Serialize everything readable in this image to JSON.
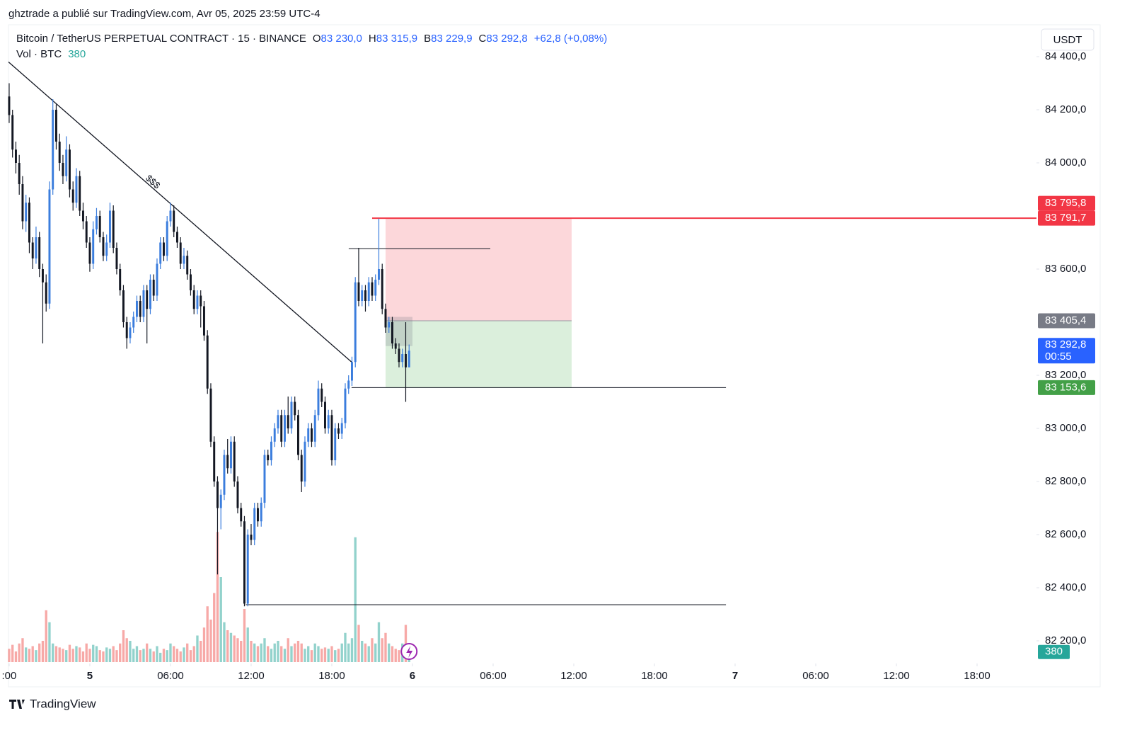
{
  "chart_data": {
    "type": "candlestick",
    "header": "ghztrade a publié sur TradingView.com, Avr 05, 2025 23:59 UTC-4",
    "symbol": "Bitcoin / TetherUS PERPETUAL CONTRACT · 15 · BINANCE",
    "legend_fields": [
      {
        "key": "O",
        "value": "83 230,0"
      },
      {
        "key": "H",
        "value": "83 315,9"
      },
      {
        "key": "B",
        "value": "83 229,9"
      },
      {
        "key": "C",
        "value": "83 292,8"
      }
    ],
    "change": "+62,8 (+0,08%)",
    "volume_label": "Vol · BTC",
    "currency": "USDT",
    "footer": "TradingView",
    "up_color": "#3b7ddd",
    "down_color": "#131722",
    "volume_up_color": "rgba(38,166,154,0.5)",
    "volume_down_color": "rgba(239,83,80,0.5)",
    "xlim": [
      -6.05,
      70.42
    ],
    "ylim": [
      82120,
      84520
    ],
    "volume_ylim": [
      0,
      24000
    ],
    "xticks": [
      {
        "value": -6,
        "label": ":00"
      },
      {
        "value": 0,
        "label": "5"
      },
      {
        "value": 6,
        "label": "06:00"
      },
      {
        "value": 12,
        "label": "12:00"
      },
      {
        "value": 18,
        "label": "18:00"
      },
      {
        "value": 24,
        "label": "6"
      },
      {
        "value": 30,
        "label": "06:00"
      },
      {
        "value": 36,
        "label": "12:00"
      },
      {
        "value": 42,
        "label": "18:00"
      },
      {
        "value": 48,
        "label": "7"
      },
      {
        "value": 54,
        "label": "06:00"
      },
      {
        "value": 60,
        "label": "12:00"
      },
      {
        "value": 66,
        "label": "18:00"
      }
    ],
    "yticks": [
      {
        "value": 84400,
        "label": "84 400,0"
      },
      {
        "value": 84200,
        "label": "84 200,0"
      },
      {
        "value": 84000,
        "label": "84 000,0"
      },
      {
        "value": 83600,
        "label": "83 600,0"
      },
      {
        "value": 83200,
        "label": "83 200,0"
      },
      {
        "value": 83000,
        "label": "83 000,0"
      },
      {
        "value": 82800,
        "label": "82 800,0"
      },
      {
        "value": 82600,
        "label": "82 600,0"
      },
      {
        "value": 82400,
        "label": "82 400,0"
      },
      {
        "value": 82200,
        "label": "82 200,0"
      }
    ],
    "price_labels": [
      {
        "value": 83795.8,
        "label": "83 795,8",
        "color": "#f23645"
      },
      {
        "value": 83791.7,
        "label": "83 791,7",
        "color": "#f23645"
      },
      {
        "value": 83405.4,
        "label": "83 405,4",
        "color": "#787b86"
      },
      {
        "value": 83292.8,
        "label": "83 292,8",
        "color": "#2962ff",
        "countdown": "00:55"
      },
      {
        "value": 83153.6,
        "label": "83 153,6",
        "color": "#43a047"
      }
    ],
    "trendline": {
      "x": [
        -6.05,
        19.47
      ],
      "y": [
        84380,
        83250
      ],
      "label": "$$$"
    },
    "hlines": [
      {
        "y": 83791.7,
        "x": [
          21.0,
          70.42
        ],
        "color": "#f23645",
        "width": 2
      },
      {
        "y": 83677,
        "x": [
          19.26,
          29.79
        ],
        "color": "#131722",
        "width": 1
      },
      {
        "y": 83153.6,
        "x": [
          19.47,
          47.32
        ],
        "color": "#131722",
        "width": 1
      },
      {
        "y": 82336,
        "x": [
          11.58,
          47.32
        ],
        "color": "#131722",
        "width": 1
      }
    ],
    "position": {
      "x": [
        22.0,
        35.84
      ],
      "entry": 83405.4,
      "stop": 83791.7,
      "target": 83153.6
    },
    "marker_box": {
      "x": [
        22.0,
        24.0
      ],
      "y": [
        83310,
        83420
      ]
    },
    "x": [
      -6,
      -5.75,
      -5.5,
      -5.25,
      -5,
      -4.75,
      -4.5,
      -4.25,
      -4,
      -3.75,
      -3.5,
      -3.25,
      -3,
      -2.75,
      -2.5,
      -2.25,
      -2,
      -1.75,
      -1.5,
      -1.25,
      -1,
      -0.75,
      -0.5,
      -0.25,
      0,
      0.25,
      0.5,
      0.75,
      1,
      1.25,
      1.5,
      1.75,
      2,
      2.25,
      2.5,
      2.75,
      3,
      3.25,
      3.5,
      3.75,
      4,
      4.25,
      4.5,
      4.75,
      5,
      5.25,
      5.5,
      5.75,
      6,
      6.25,
      6.5,
      6.75,
      7,
      7.25,
      7.5,
      7.75,
      8,
      8.25,
      8.5,
      8.75,
      9,
      9.25,
      9.5,
      9.75,
      10,
      10.25,
      10.5,
      10.75,
      11,
      11.25,
      11.5,
      11.75,
      12,
      12.25,
      12.5,
      12.75,
      13,
      13.25,
      13.5,
      13.75,
      14,
      14.25,
      14.5,
      14.75,
      15,
      15.25,
      15.5,
      15.75,
      16,
      16.25,
      16.5,
      16.75,
      17,
      17.25,
      17.5,
      17.75,
      18,
      18.25,
      18.5,
      18.75,
      19,
      19.25,
      19.5,
      19.75,
      20,
      20.25,
      20.5,
      20.75,
      21,
      21.25,
      21.5,
      21.75,
      22,
      22.25,
      22.5,
      22.75,
      23,
      23.25,
      23.5,
      23.75
    ],
    "ohlc": [
      [
        84250,
        84300,
        84150,
        84180
      ],
      [
        84180,
        84200,
        84020,
        84050
      ],
      [
        84050,
        84080,
        83960,
        84000
      ],
      [
        84000,
        84030,
        83880,
        83920
      ],
      [
        83920,
        83950,
        83750,
        83780
      ],
      [
        83780,
        83880,
        83740,
        83850
      ],
      [
        83850,
        83870,
        83660,
        83700
      ],
      [
        83700,
        83720,
        83600,
        83640
      ],
      [
        83640,
        83760,
        83620,
        83720
      ],
      [
        83720,
        83740,
        83570,
        83600
      ],
      [
        83600,
        83620,
        83320,
        83550
      ],
      [
        83550,
        83580,
        83440,
        83470
      ],
      [
        83470,
        83930,
        83450,
        83900
      ],
      [
        83900,
        84240,
        83880,
        84200
      ],
      [
        84200,
        84220,
        84050,
        84080
      ],
      [
        84080,
        84110,
        83970,
        84000
      ],
      [
        84000,
        84030,
        83920,
        83950
      ],
      [
        83950,
        84100,
        83930,
        84050
      ],
      [
        84050,
        84070,
        83870,
        83900
      ],
      [
        83900,
        83930,
        83820,
        83850
      ],
      [
        83850,
        83980,
        83830,
        83950
      ],
      [
        83950,
        83970,
        83800,
        83820
      ],
      [
        83820,
        83850,
        83750,
        83780
      ],
      [
        83780,
        83800,
        83680,
        83700
      ],
      [
        83700,
        83720,
        83590,
        83620
      ],
      [
        83620,
        83780,
        83600,
        83750
      ],
      [
        83750,
        83830,
        83730,
        83800
      ],
      [
        83800,
        83820,
        83700,
        83720
      ],
      [
        83720,
        83740,
        83630,
        83650
      ],
      [
        83650,
        83730,
        83630,
        83700
      ],
      [
        83700,
        83850,
        83680,
        83820
      ],
      [
        83820,
        83840,
        83660,
        83680
      ],
      [
        83680,
        83700,
        83580,
        83600
      ],
      [
        83600,
        83620,
        83500,
        83520
      ],
      [
        83520,
        83540,
        83380,
        83400
      ],
      [
        83400,
        83420,
        83300,
        83340
      ],
      [
        83340,
        83400,
        83320,
        83380
      ],
      [
        83380,
        83440,
        83360,
        83420
      ],
      [
        83420,
        83500,
        83400,
        83480
      ],
      [
        83480,
        83500,
        83400,
        83420
      ],
      [
        83420,
        83540,
        83400,
        83520
      ],
      [
        83520,
        83540,
        83320,
        83450
      ],
      [
        83450,
        83580,
        83430,
        83560
      ],
      [
        83560,
        83580,
        83480,
        83500
      ],
      [
        83500,
        83640,
        83480,
        83620
      ],
      [
        83620,
        83720,
        83600,
        83700
      ],
      [
        83700,
        83720,
        83630,
        83650
      ],
      [
        83650,
        83800,
        83630,
        83780
      ],
      [
        83780,
        83850,
        83760,
        83820
      ],
      [
        83820,
        83840,
        83720,
        83740
      ],
      [
        83740,
        83760,
        83680,
        83700
      ],
      [
        83700,
        83720,
        83600,
        83620
      ],
      [
        83620,
        83680,
        83600,
        83650
      ],
      [
        83650,
        83670,
        83560,
        83580
      ],
      [
        83580,
        83600,
        83500,
        83520
      ],
      [
        83520,
        83540,
        83430,
        83450
      ],
      [
        83450,
        83520,
        83430,
        83500
      ],
      [
        83500,
        83520,
        83380,
        83460
      ],
      [
        83460,
        83480,
        83330,
        83350
      ],
      [
        83350,
        83370,
        83130,
        83150
      ],
      [
        83150,
        83170,
        82930,
        82950
      ],
      [
        82950,
        82970,
        82780,
        82800
      ],
      [
        82800,
        82820,
        82450,
        82700
      ],
      [
        82700,
        82770,
        82620,
        82750
      ],
      [
        82750,
        82920,
        82730,
        82900
      ],
      [
        82900,
        82960,
        82830,
        82850
      ],
      [
        82850,
        82970,
        82830,
        82950
      ],
      [
        82950,
        82970,
        82780,
        82800
      ],
      [
        82800,
        82820,
        82680,
        82700
      ],
      [
        82700,
        82720,
        82630,
        82650
      ],
      [
        82650,
        82670,
        82330,
        82340
      ],
      [
        82340,
        82620,
        82330,
        82600
      ],
      [
        82600,
        82640,
        82560,
        82580
      ],
      [
        82580,
        82720,
        82560,
        82700
      ],
      [
        82700,
        82720,
        82630,
        82650
      ],
      [
        82650,
        82740,
        82630,
        82720
      ],
      [
        82720,
        82920,
        82700,
        82900
      ],
      [
        82900,
        82920,
        82860,
        82880
      ],
      [
        82880,
        82970,
        82860,
        82950
      ],
      [
        82950,
        83020,
        82930,
        83000
      ],
      [
        83000,
        83070,
        82980,
        83050
      ],
      [
        83050,
        83070,
        82930,
        82950
      ],
      [
        82950,
        83070,
        82930,
        83050
      ],
      [
        83050,
        83120,
        82980,
        83000
      ],
      [
        83000,
        83120,
        82980,
        83100
      ],
      [
        83100,
        83120,
        83030,
        83050
      ],
      [
        83050,
        83070,
        82880,
        82900
      ],
      [
        82900,
        82920,
        82760,
        82800
      ],
      [
        82800,
        82970,
        82780,
        82950
      ],
      [
        82950,
        83020,
        82930,
        83000
      ],
      [
        83000,
        83020,
        82930,
        82950
      ],
      [
        82950,
        83070,
        82930,
        83050
      ],
      [
        83050,
        83180,
        83030,
        83150
      ],
      [
        83150,
        83170,
        83080,
        83100
      ],
      [
        83100,
        83120,
        82980,
        83000
      ],
      [
        83000,
        83070,
        82980,
        83050
      ],
      [
        83050,
        83070,
        82860,
        82880
      ],
      [
        82880,
        83020,
        82860,
        83000
      ],
      [
        83000,
        83020,
        82960,
        82980
      ],
      [
        82980,
        83040,
        82960,
        83020
      ],
      [
        83020,
        83170,
        83000,
        83150
      ],
      [
        83150,
        83200,
        83130,
        83180
      ],
      [
        83180,
        83270,
        83160,
        83250
      ],
      [
        83250,
        83570,
        83230,
        83550
      ],
      [
        83550,
        83680,
        83460,
        83480
      ],
      [
        83480,
        83540,
        83460,
        83520
      ],
      [
        83520,
        83540,
        83440,
        83480
      ],
      [
        83480,
        83570,
        83460,
        83550
      ],
      [
        83550,
        83570,
        83480,
        83500
      ],
      [
        83500,
        83580,
        83480,
        83560
      ],
      [
        83560,
        83790,
        83540,
        83600
      ],
      [
        83600,
        83620,
        83430,
        83450
      ],
      [
        83450,
        83470,
        83360,
        83380
      ],
      [
        83380,
        83420,
        83360,
        83400
      ],
      [
        83400,
        83420,
        83300,
        83320
      ],
      [
        83320,
        83340,
        83280,
        83300
      ],
      [
        83300,
        83320,
        83230,
        83250
      ],
      [
        83250,
        83300,
        83230,
        83280
      ],
      [
        83280,
        83400,
        83100,
        83230
      ],
      [
        83230,
        83315.9,
        83229.9,
        83292.8
      ]
    ],
    "volume": [
      500,
      650,
      400,
      700,
      900,
      550,
      500,
      600,
      450,
      700,
      800,
      1950,
      1500,
      700,
      600,
      550,
      500,
      450,
      650,
      500,
      600,
      550,
      400,
      700,
      500,
      650,
      600,
      450,
      400,
      550,
      500,
      600,
      450,
      700,
      1200,
      900,
      800,
      500,
      600,
      450,
      500,
      700,
      500,
      400,
      600,
      350,
      500,
      450,
      700,
      600,
      500,
      400,
      550,
      700,
      450,
      600,
      1000,
      800,
      1300,
      2100,
      1600,
      2600,
      4900,
      3200,
      1500,
      1200,
      1100,
      1000,
      900,
      800,
      2000,
      1300,
      800,
      700,
      600,
      700,
      900,
      600,
      500,
      700,
      800,
      600,
      500,
      900,
      600,
      700,
      800,
      700,
      500,
      600,
      450,
      700,
      600,
      500,
      550,
      500,
      600,
      450,
      500,
      700,
      1100,
      700,
      900,
      4700,
      1400,
      800,
      700,
      600,
      900,
      700,
      1500,
      900,
      1100,
      700,
      600,
      500,
      450,
      700,
      1400,
      380
    ]
  }
}
